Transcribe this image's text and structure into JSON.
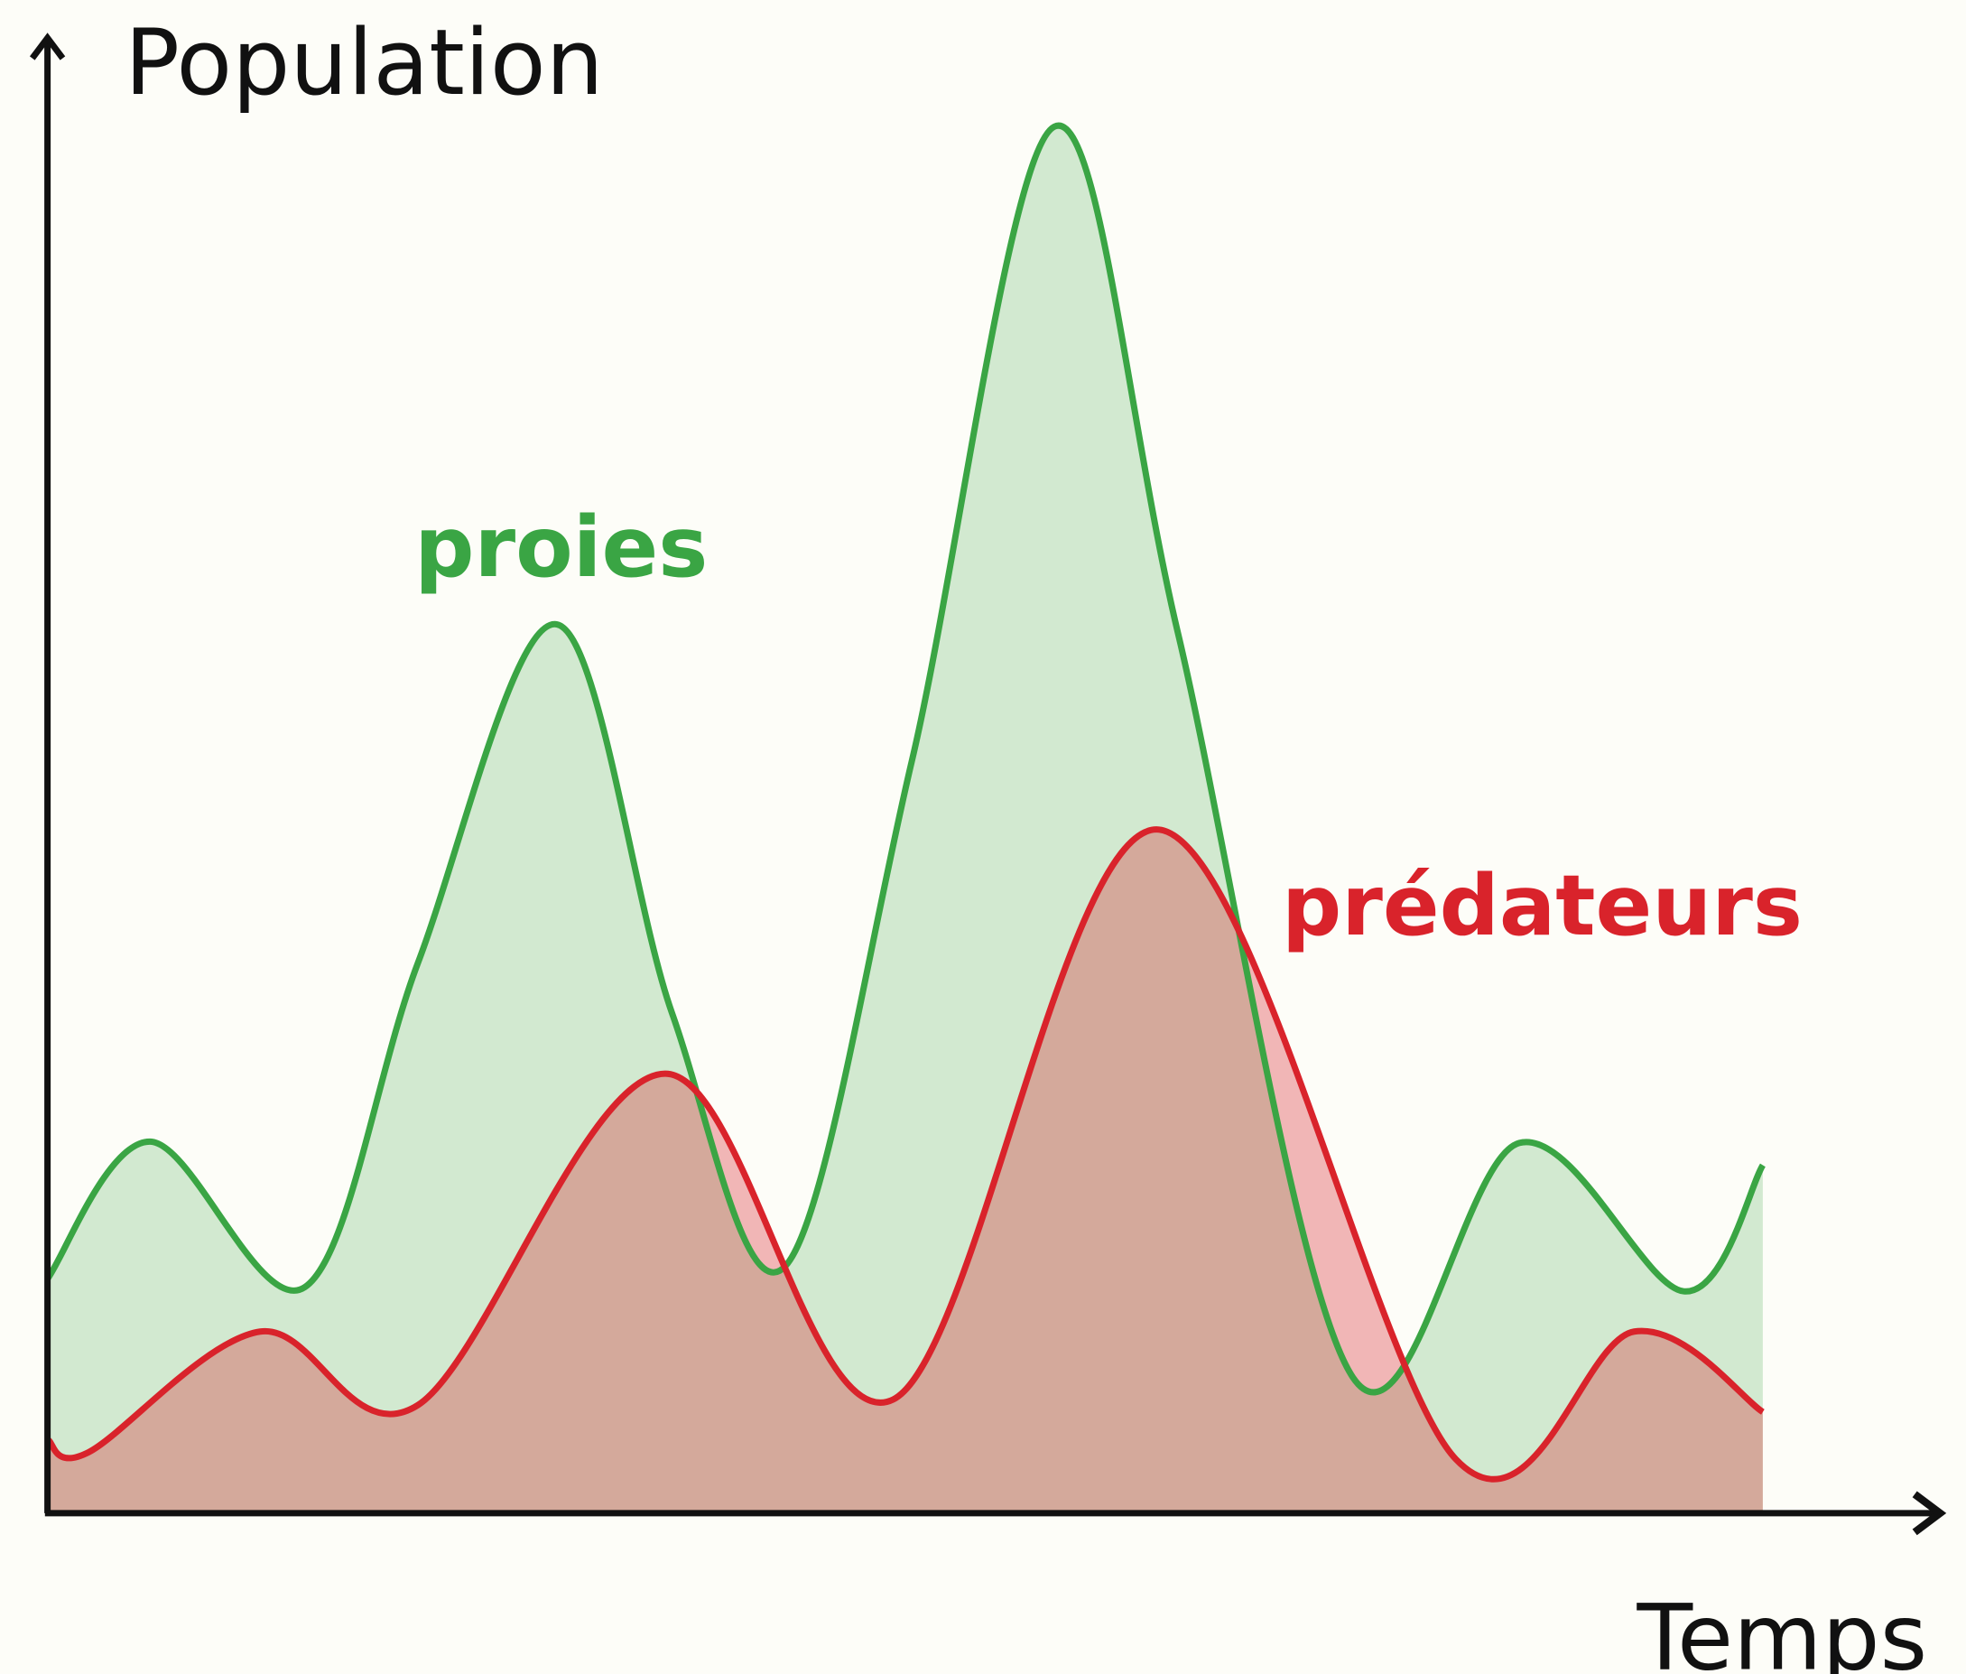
{
  "chart_data": {
    "type": "area",
    "y_label": "Population",
    "x_label": "Temps",
    "xlim": [
      0,
      100
    ],
    "ylim": [
      0,
      100
    ],
    "series": [
      {
        "name": "proies",
        "color": "#3aa544",
        "x": [
          0,
          6.0,
          15.0,
          21.6,
          29.7,
          36.4,
          43.0,
          50.4,
          58.7,
          65.9,
          76.1,
          85.8,
          95.4,
          100
        ],
        "values": [
          16.9,
          26.8,
          16.3,
          39.7,
          64.1,
          36.1,
          17.8,
          54.3,
          100,
          63.5,
          9.8,
          26.7,
          16.0,
          25.1
        ]
      },
      {
        "name": "prédateurs",
        "color": "#d9232b",
        "x": [
          0,
          2.4,
          12.4,
          21.6,
          36.0,
          49.3,
          64.8,
          82.1,
          92.5,
          100
        ],
        "values": [
          5.3,
          4.4,
          13.1,
          7.8,
          31.7,
          8.2,
          49.3,
          3.9,
          13.1,
          7.3
        ]
      }
    ]
  }
}
